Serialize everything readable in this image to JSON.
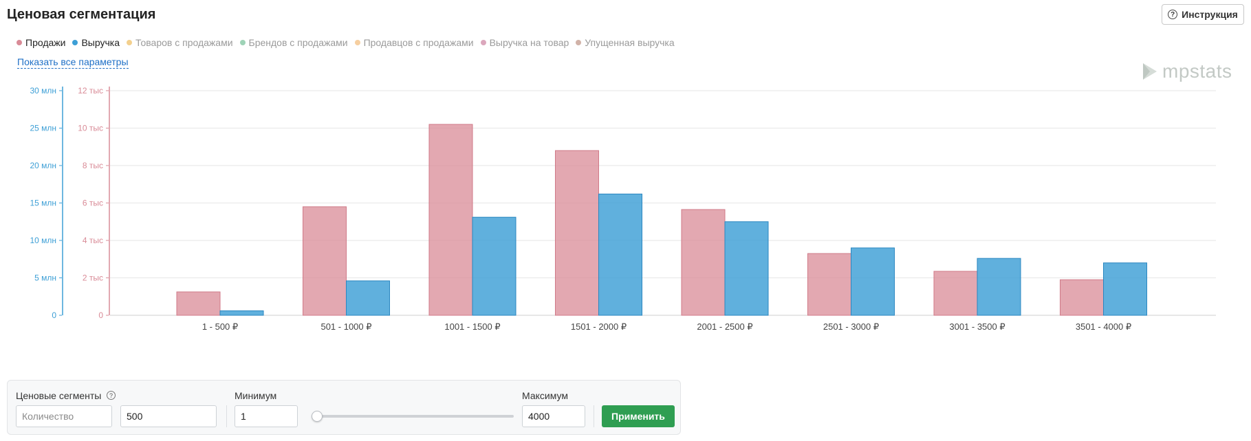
{
  "header": {
    "title": "Ценовая сегментация",
    "help_label": "Инструкция"
  },
  "legend": [
    {
      "label": "Продажи",
      "color": "#d98b97",
      "active": true
    },
    {
      "label": "Выручка",
      "color": "#3d9fd6",
      "active": true
    },
    {
      "label": "Товаров с продажами",
      "color": "#f3d08e",
      "active": false
    },
    {
      "label": "Брендов с продажами",
      "color": "#9ed3b7",
      "active": false
    },
    {
      "label": "Продавцов с продажами",
      "color": "#f6cfa0",
      "active": false
    },
    {
      "label": "Выручка на товар",
      "color": "#dba7bc",
      "active": false
    },
    {
      "label": "Упущенная выручка",
      "color": "#d1b2a8",
      "active": false
    }
  ],
  "show_all_link": "Показать все параметры",
  "logo": {
    "text": "mpstats",
    "color": "#c3c9c5"
  },
  "chart_data": {
    "type": "bar",
    "categories": [
      "1 - 500 ₽",
      "501 - 1000 ₽",
      "1001 - 1500 ₽",
      "1501 - 2000 ₽",
      "2001 - 2500 ₽",
      "2501 - 3000 ₽",
      "3001 - 3500 ₽",
      "3501 - 4000 ₽"
    ],
    "series": [
      {
        "name": "Продажи",
        "axis": "right-inner",
        "color": "#d98b97",
        "values": [
          1250,
          5800,
          10200,
          8800,
          5650,
          3300,
          2350,
          1900
        ]
      },
      {
        "name": "Выручка",
        "axis": "left-outer",
        "color": "#3d9fd6",
        "values": [
          600,
          4600,
          13100,
          16200,
          12500,
          9000,
          7600,
          7000
        ]
      }
    ],
    "y_left": {
      "min": 0,
      "max": 30000000,
      "tick_labels": [
        "0",
        "5 млн",
        "10 млн",
        "15 млн",
        "20 млн",
        "25 млн",
        "30 млн"
      ],
      "color": "#3d9fd6"
    },
    "y_right": {
      "min": 0,
      "max": 12000,
      "tick_labels": [
        "0",
        "2 тыс",
        "4 тыс",
        "6 тыс",
        "8 тыс",
        "10 тыс",
        "12 тыс"
      ],
      "color": "#d98b97"
    },
    "grid": true
  },
  "controls": {
    "segments_label": "Ценовые сегменты",
    "mode_placeholder": "Количество",
    "segments_value": "500",
    "min_label": "Минимум",
    "min_value": "1",
    "max_label": "Максимум",
    "max_value": "4000",
    "slider_position": 0,
    "apply_label": "Применить"
  }
}
